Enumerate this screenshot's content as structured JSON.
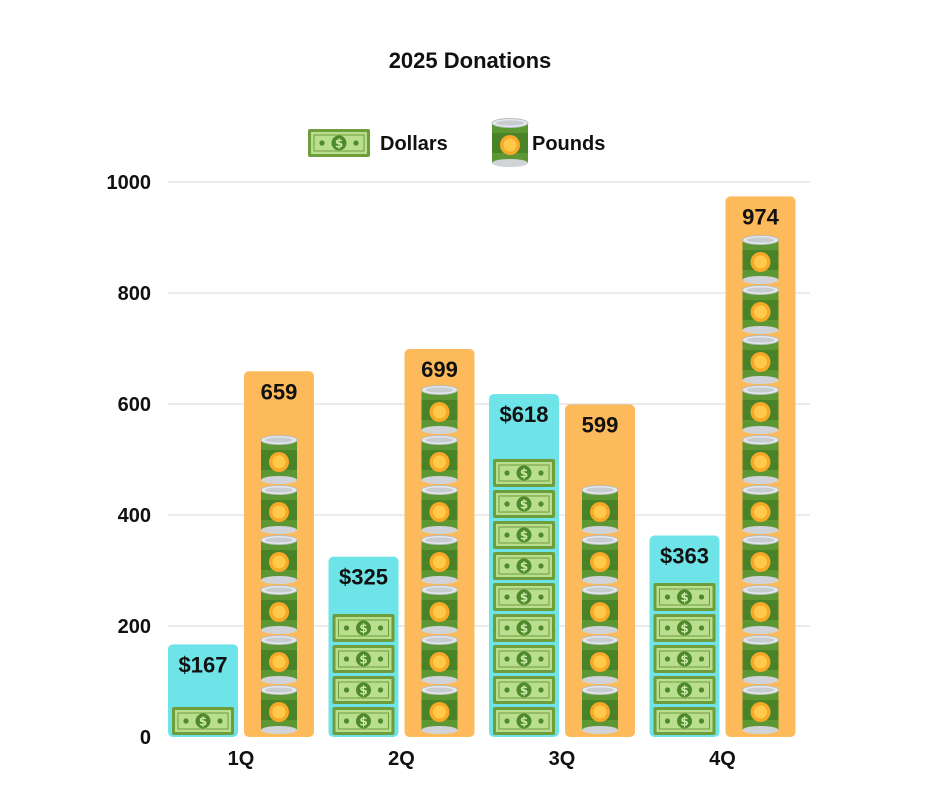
{
  "chart_data": {
    "type": "bar",
    "title": "2025 Donations",
    "categories": [
      "1Q",
      "2Q",
      "3Q",
      "4Q"
    ],
    "series": [
      {
        "name": "Dollars",
        "values": [
          167,
          325,
          618,
          363
        ],
        "labels": [
          "$167",
          "$325",
          "$618",
          "$363"
        ],
        "color": "#6EE3E8",
        "icon": "dollar-bill-icon"
      },
      {
        "name": "Pounds",
        "values": [
          659,
          699,
          599,
          974
        ],
        "labels": [
          "659",
          "699",
          "599",
          "974"
        ],
        "color": "#FDBA5A",
        "icon": "food-can-icon"
      }
    ],
    "y_ticks": [
      "0",
      "200",
      "400",
      "600",
      "800",
      "1000"
    ],
    "ylim": [
      0,
      1000
    ],
    "grid": true,
    "legend_position": "top-center"
  }
}
